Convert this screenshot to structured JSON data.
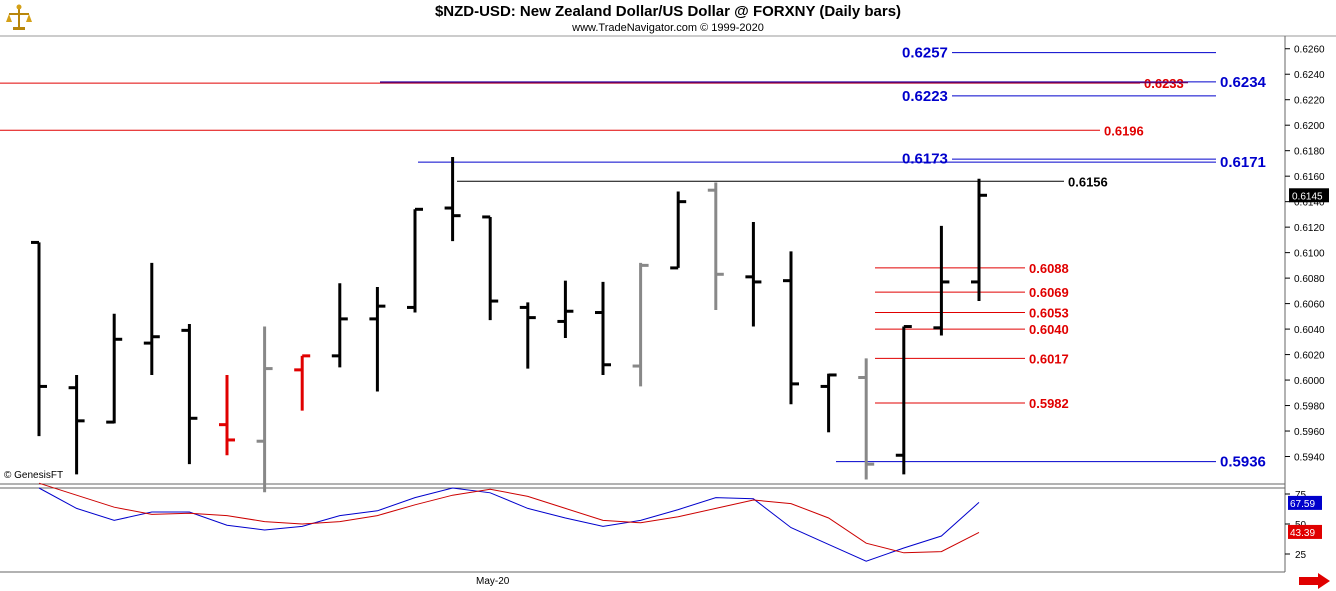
{
  "header": {
    "title": "$NZD-USD:  New Zealand Dollar/US Dollar @ FORXNY  (Daily bars)",
    "subtitle": "www.TradeNavigator.com © 1999-2020",
    "credit": "© GenesisFT"
  },
  "chart_data": [
    {
      "type": "ohlc-bar",
      "title": "$NZD-USD:  New Zealand Dollar/US Dollar @ FORXNY  (Daily bars)",
      "y_axis": {
        "side": "right",
        "ylim": [
          0.592,
          0.627
        ],
        "ticks": [
          "0.6260",
          "0.6240",
          "0.6220",
          "0.6200",
          "0.6180",
          "0.6160",
          "0.6140",
          "0.6120",
          "0.6100",
          "0.6080",
          "0.6060",
          "0.6040",
          "0.6020",
          "0.6000",
          "0.5980",
          "0.5960",
          "0.5940"
        ]
      },
      "x_axis": {
        "label": "May-20"
      },
      "last_price": "0.6145",
      "colors": {
        "bar": "#000000",
        "down_bar": "#e00000",
        "neutral_bar": "#888888",
        "level_blue": "#0000cc",
        "level_red": "#e00000"
      },
      "bars": [
        {
          "o": 0.6108,
          "h": 0.6108,
          "l": 0.5956,
          "c": 0.5995,
          "color": "black"
        },
        {
          "o": 0.5994,
          "h": 0.6004,
          "l": 0.5926,
          "c": 0.5968,
          "color": "black"
        },
        {
          "o": 0.5967,
          "h": 0.6052,
          "l": 0.5966,
          "c": 0.6032,
          "color": "black"
        },
        {
          "o": 0.6029,
          "h": 0.6092,
          "l": 0.6004,
          "c": 0.6034,
          "color": "black"
        },
        {
          "o": 0.6039,
          "h": 0.6044,
          "l": 0.5934,
          "c": 0.597,
          "color": "black"
        },
        {
          "o": 0.5965,
          "h": 0.6004,
          "l": 0.5941,
          "c": 0.5953,
          "color": "red"
        },
        {
          "o": 0.5952,
          "h": 0.6042,
          "l": 0.5912,
          "c": 0.6009,
          "color": "gray"
        },
        {
          "o": 0.6008,
          "h": 0.6019,
          "l": 0.5976,
          "c": 0.6019,
          "color": "red"
        },
        {
          "o": 0.6019,
          "h": 0.6076,
          "l": 0.601,
          "c": 0.6048,
          "color": "black"
        },
        {
          "o": 0.6048,
          "h": 0.6073,
          "l": 0.5991,
          "c": 0.6058,
          "color": "black"
        },
        {
          "o": 0.6057,
          "h": 0.6134,
          "l": 0.6053,
          "c": 0.6134,
          "color": "black"
        },
        {
          "o": 0.6135,
          "h": 0.6175,
          "l": 0.6109,
          "c": 0.6129,
          "color": "black"
        },
        {
          "o": 0.6128,
          "h": 0.6128,
          "l": 0.6047,
          "c": 0.6062,
          "color": "black"
        },
        {
          "o": 0.6057,
          "h": 0.6061,
          "l": 0.6009,
          "c": 0.6049,
          "color": "black"
        },
        {
          "o": 0.6046,
          "h": 0.6078,
          "l": 0.6033,
          "c": 0.6054,
          "color": "black"
        },
        {
          "o": 0.6053,
          "h": 0.6077,
          "l": 0.6004,
          "c": 0.6012,
          "color": "black"
        },
        {
          "o": 0.6011,
          "h": 0.6092,
          "l": 0.5995,
          "c": 0.609,
          "color": "gray"
        },
        {
          "o": 0.6088,
          "h": 0.6148,
          "l": 0.6088,
          "c": 0.614,
          "color": "black"
        },
        {
          "o": 0.6149,
          "h": 0.6155,
          "l": 0.6055,
          "c": 0.6083,
          "color": "gray"
        },
        {
          "o": 0.6081,
          "h": 0.6124,
          "l": 0.6042,
          "c": 0.6077,
          "color": "black"
        },
        {
          "o": 0.6078,
          "h": 0.6101,
          "l": 0.5981,
          "c": 0.5997,
          "color": "black"
        },
        {
          "o": 0.5995,
          "h": 0.6005,
          "l": 0.5959,
          "c": 0.6004,
          "color": "black"
        },
        {
          "o": 0.6002,
          "h": 0.6017,
          "l": 0.5922,
          "c": 0.5934,
          "color": "gray"
        },
        {
          "o": 0.5941,
          "h": 0.6042,
          "l": 0.5926,
          "c": 0.6042,
          "color": "black"
        },
        {
          "o": 0.6041,
          "h": 0.6121,
          "l": 0.6035,
          "c": 0.6077,
          "color": "black"
        },
        {
          "o": 0.6077,
          "h": 0.6158,
          "l": 0.6062,
          "c": 0.6145,
          "color": "black"
        }
      ],
      "levels": [
        {
          "value": 0.6257,
          "label": "0.6257",
          "color": "blue"
        },
        {
          "value": 0.6234,
          "label": "0.6234",
          "color": "blue"
        },
        {
          "value": 0.6233,
          "label": "0.6233",
          "color": "red"
        },
        {
          "value": 0.6223,
          "label": "0.6223",
          "color": "blue"
        },
        {
          "value": 0.6196,
          "label": "0.6196",
          "color": "red"
        },
        {
          "value": 0.6173,
          "label": "0.6173",
          "color": "blue"
        },
        {
          "value": 0.6171,
          "label": "0.6171",
          "color": "blue"
        },
        {
          "value": 0.6156,
          "label": "0.6156",
          "color": "black"
        },
        {
          "value": 0.6088,
          "label": "0.6088",
          "color": "red"
        },
        {
          "value": 0.6069,
          "label": "0.6069",
          "color": "red"
        },
        {
          "value": 0.6053,
          "label": "0.6053",
          "color": "red"
        },
        {
          "value": 0.604,
          "label": "0.6040",
          "color": "red"
        },
        {
          "value": 0.6017,
          "label": "0.6017",
          "color": "red"
        },
        {
          "value": 0.5982,
          "label": "0.5982",
          "color": "red"
        },
        {
          "value": 0.5936,
          "label": "0.5936",
          "color": "blue"
        }
      ]
    },
    {
      "type": "line",
      "indicator": "oscillator",
      "ylim": [
        10,
        80
      ],
      "ticks": [
        "75",
        "50",
        "25"
      ],
      "readouts": {
        "blue": "67.59",
        "red": "43.39"
      },
      "series": [
        {
          "color": "#0000cc",
          "values": [
            80,
            63,
            53,
            60,
            60,
            49,
            45,
            48,
            57,
            61,
            72,
            80,
            76,
            63,
            55,
            48,
            53,
            62,
            72,
            71,
            47,
            33,
            19,
            30,
            40,
            68
          ]
        },
        {
          "color": "#cc0000",
          "values": [
            84,
            74,
            64,
            58,
            59,
            57,
            52,
            50,
            52,
            57,
            66,
            74,
            79,
            73,
            63,
            53,
            51,
            56,
            63,
            70,
            67,
            55,
            34,
            26,
            27,
            43
          ]
        }
      ]
    }
  ]
}
